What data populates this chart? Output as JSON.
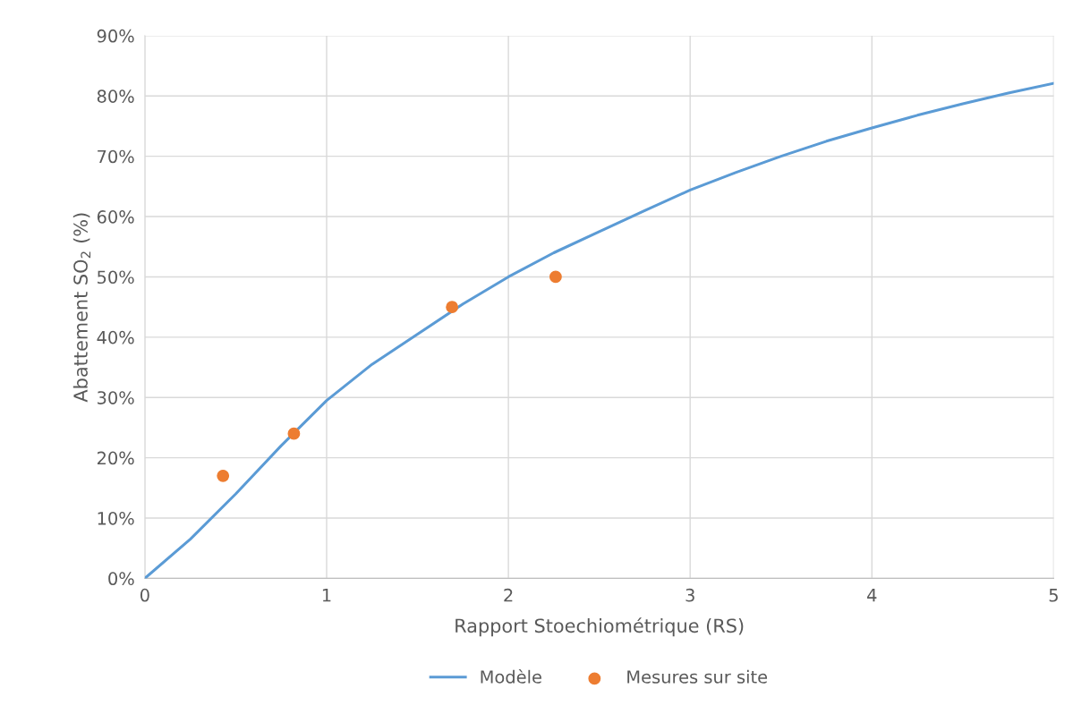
{
  "chart_data": {
    "type": "line",
    "xlabel": "Rapport Stoechiométrique (RS)",
    "ylabel": "Abattement SO$_{2}$ (%)",
    "xlim": [
      0,
      5
    ],
    "xticks": [
      0,
      1,
      2,
      3,
      4,
      5
    ],
    "ylim": [
      0,
      90
    ],
    "yticks": [
      {
        "value": 0,
        "label": "0%"
      },
      {
        "value": 10,
        "label": "10%"
      },
      {
        "value": 20,
        "label": "20%"
      },
      {
        "value": 30,
        "label": "30%"
      },
      {
        "value": 40,
        "label": "40%"
      },
      {
        "value": 50,
        "label": "50%"
      },
      {
        "value": 60,
        "label": "60%"
      },
      {
        "value": 70,
        "label": "70%"
      },
      {
        "value": 80,
        "label": "80%"
      },
      {
        "value": 90,
        "label": "90%"
      }
    ],
    "grid": true,
    "legend": "bottom",
    "series": [
      {
        "name": "Modèle",
        "color": "#5b9bd5",
        "marker": "none",
        "line_style": "solid",
        "x": [
          0,
          0.25,
          0.5,
          0.75,
          1,
          1.25,
          1.5,
          1.75,
          2,
          2.25,
          2.5,
          2.75,
          3,
          3.25,
          3.5,
          3.75,
          4,
          4.25,
          4.5,
          4.75,
          5
        ],
        "values": [
          0,
          6.5,
          14,
          22,
          29.5,
          35.5,
          40.5,
          45.5,
          50,
          54,
          57.5,
          61,
          64.4,
          67.3,
          70,
          72.5,
          74.7,
          76.8,
          78.7,
          80.5,
          82.1
        ]
      },
      {
        "name": "Mesures sur site",
        "type": "scatter",
        "color": "#ed7d31",
        "marker": "circle",
        "x": [
          0.43,
          0.82,
          1.69,
          2.26
        ],
        "values": [
          17,
          24,
          45,
          50
        ]
      }
    ]
  }
}
